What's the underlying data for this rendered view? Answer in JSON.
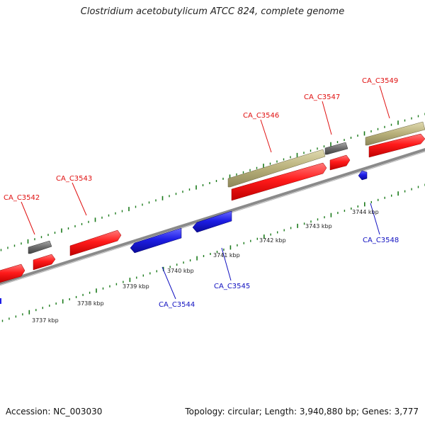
{
  "title": "Clostridium acetobutylicum ATCC 824, complete genome",
  "footer": {
    "accession": "Accession: NC_003030",
    "summary": "Topology: circular; Length: 3,940,880 bp; Genes: 3,777"
  },
  "colors": {
    "forward_cds": "#ff2020",
    "reverse_cds": "#1e1ee6",
    "rna_feature": "#b8b07a",
    "other_feature": "#6c6c6c",
    "backbone": "#8a8a8a",
    "ticks": "#1a7a1a",
    "forward_label": "#e01010",
    "reverse_label": "#1010c0"
  },
  "ruler_labels": [
    "3737 kbp",
    "3738 kbp",
    "3739 kbp",
    "3740 kbp",
    "3741 kbp",
    "3742 kbp",
    "3743 kbp",
    "3744 kbp"
  ],
  "forward_genes": [
    "CA_C3542",
    "CA_C3543",
    "CA_C3546",
    "CA_C3547",
    "CA_C3549"
  ],
  "reverse_genes": [
    "CA_C3544",
    "CA_C3545",
    "CA_C3548"
  ]
}
